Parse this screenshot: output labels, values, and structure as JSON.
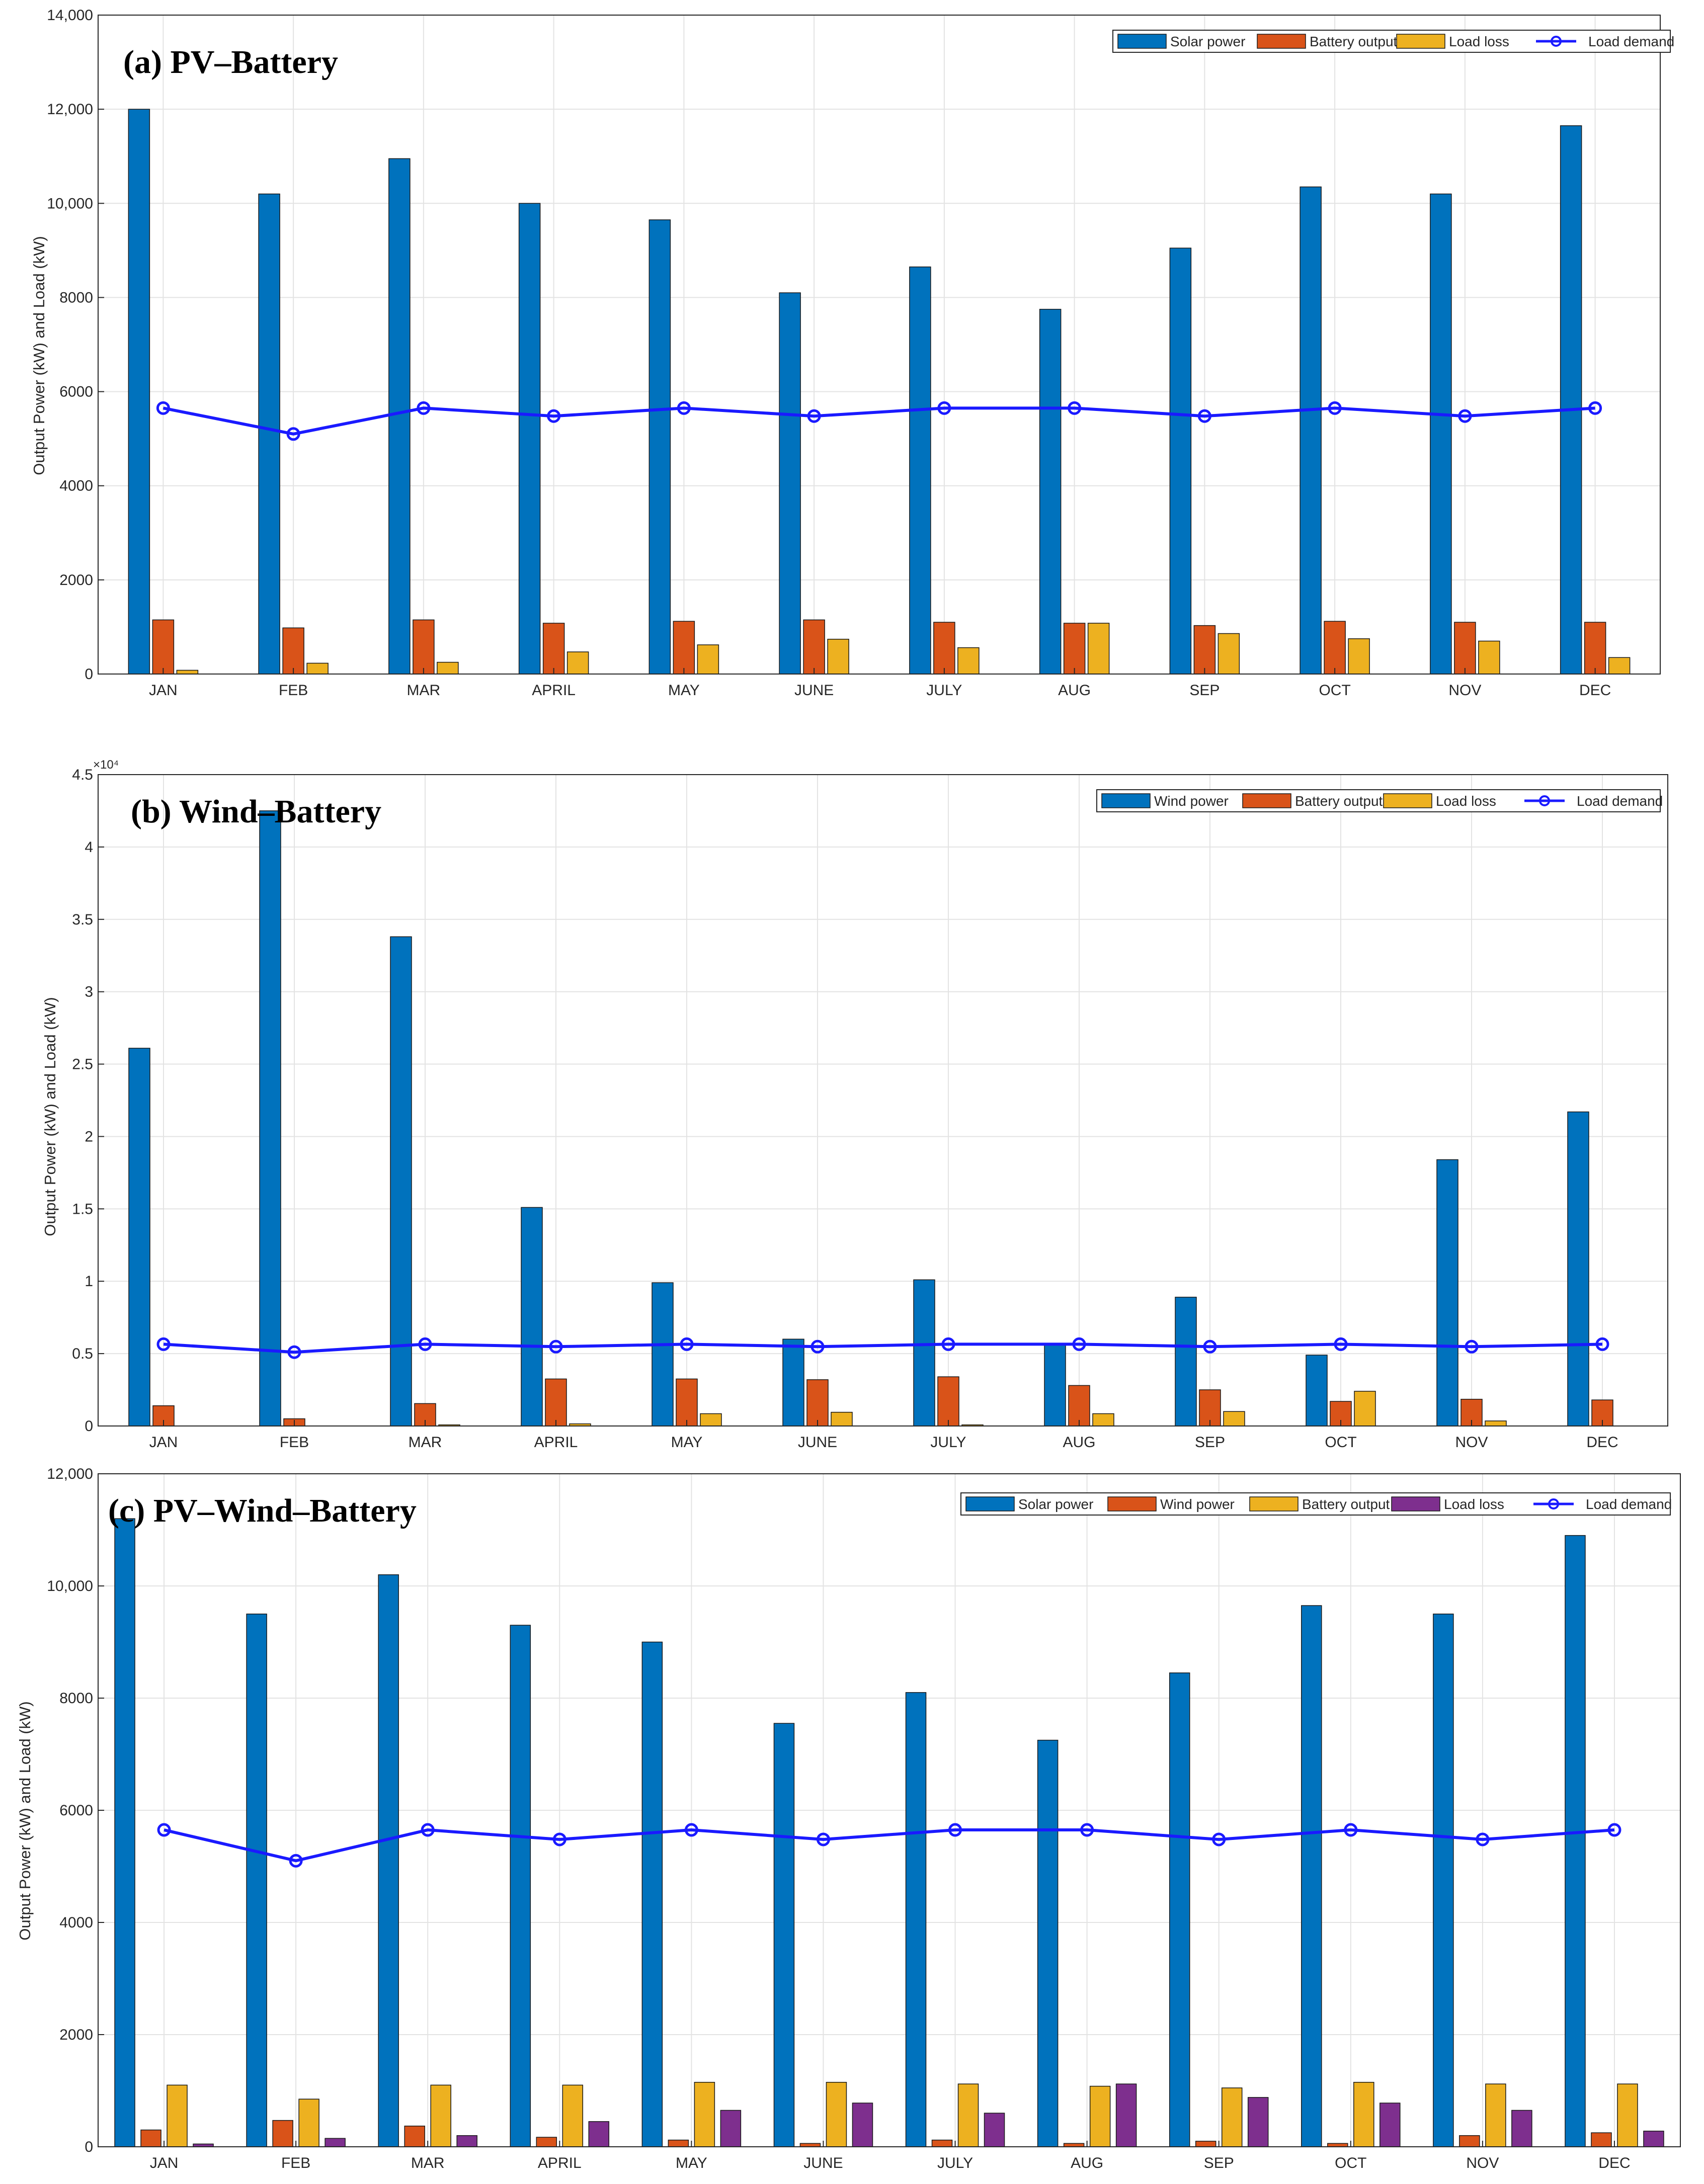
{
  "charts": {
    "a": {
      "title": "(a) PV–Battery",
      "ylabel": "Output Power (kW) and Load (kW)",
      "scale_exponent": "",
      "categories": [
        "JAN",
        "FEB",
        "MAR",
        "APRIL",
        "MAY",
        "JUNE",
        "JULY",
        "AUG",
        "SEP",
        "OCT",
        "NOV",
        "DEC"
      ],
      "yticks": [
        {
          "v": 0,
          "label": "0"
        },
        {
          "v": 2000,
          "label": "2000"
        },
        {
          "v": 4000,
          "label": "4000"
        },
        {
          "v": 6000,
          "label": "6000"
        },
        {
          "v": 8000,
          "label": "8000"
        },
        {
          "v": 10000,
          "label": "10,000"
        },
        {
          "v": 12000,
          "label": "12,000"
        },
        {
          "v": 14000,
          "label": "14,000"
        }
      ],
      "legend": [
        {
          "label": "Solar power",
          "kind": "bar",
          "color": "#0072BD"
        },
        {
          "label": "Battery output",
          "kind": "bar",
          "color": "#D95319"
        },
        {
          "label": "Load loss",
          "kind": "bar",
          "color": "#EDB120"
        },
        {
          "label": "Load demand",
          "kind": "line",
          "color": "#1A1AFF"
        }
      ]
    },
    "b": {
      "title": "(b) Wind–Battery",
      "ylabel": "Output Power (kW) and Load (kW)",
      "scale_exponent": "×10⁴",
      "categories": [
        "JAN",
        "FEB",
        "MAR",
        "APRIL",
        "MAY",
        "JUNE",
        "JULY",
        "AUG",
        "SEP",
        "OCT",
        "NOV",
        "DEC"
      ],
      "yticks": [
        {
          "v": 0,
          "label": "0"
        },
        {
          "v": 5000,
          "label": "0.5"
        },
        {
          "v": 10000,
          "label": "1"
        },
        {
          "v": 15000,
          "label": "1.5"
        },
        {
          "v": 20000,
          "label": "2"
        },
        {
          "v": 25000,
          "label": "2.5"
        },
        {
          "v": 30000,
          "label": "3"
        },
        {
          "v": 35000,
          "label": "3.5"
        },
        {
          "v": 40000,
          "label": "4"
        },
        {
          "v": 45000,
          "label": "4.5"
        }
      ],
      "legend": [
        {
          "label": "Wind power",
          "kind": "bar",
          "color": "#0072BD"
        },
        {
          "label": "Battery output",
          "kind": "bar",
          "color": "#D95319"
        },
        {
          "label": "Load loss",
          "kind": "bar",
          "color": "#EDB120"
        },
        {
          "label": "Load demand",
          "kind": "line",
          "color": "#1A1AFF"
        }
      ]
    },
    "c": {
      "title": "(c) PV–Wind–Battery",
      "ylabel": "Output Power (kW) and Load (kW)",
      "scale_exponent": "",
      "categories": [
        "JAN",
        "FEB",
        "MAR",
        "APRIL",
        "MAY",
        "JUNE",
        "JULY",
        "AUG",
        "SEP",
        "OCT",
        "NOV",
        "DEC"
      ],
      "yticks": [
        {
          "v": 0,
          "label": "0"
        },
        {
          "v": 2000,
          "label": "2000"
        },
        {
          "v": 4000,
          "label": "4000"
        },
        {
          "v": 6000,
          "label": "6000"
        },
        {
          "v": 8000,
          "label": "8000"
        },
        {
          "v": 10000,
          "label": "10,000"
        },
        {
          "v": 12000,
          "label": "12,000"
        }
      ],
      "legend": [
        {
          "label": "Solar power",
          "kind": "bar",
          "color": "#0072BD"
        },
        {
          "label": "Wind power",
          "kind": "bar",
          "color": "#D95319"
        },
        {
          "label": "Battery output",
          "kind": "bar",
          "color": "#EDB120"
        },
        {
          "label": "Load loss",
          "kind": "bar",
          "color": "#7E2F8E"
        },
        {
          "label": "Load demand",
          "kind": "line",
          "color": "#1A1AFF"
        }
      ]
    }
  },
  "chart_data": [
    {
      "type": "bar",
      "title": "(a) PV–Battery",
      "xlabel": "",
      "ylabel": "Output Power (kW) and Load (kW)",
      "ylim": [
        0,
        14000
      ],
      "grid": true,
      "legend_position": "top-right",
      "categories": [
        "JAN",
        "FEB",
        "MAR",
        "APRIL",
        "MAY",
        "JUNE",
        "JULY",
        "AUG",
        "SEP",
        "OCT",
        "NOV",
        "DEC"
      ],
      "series": [
        {
          "name": "Solar power",
          "type": "bar",
          "color": "#0072BD",
          "values": [
            12000,
            10200,
            10950,
            10000,
            9650,
            8100,
            8650,
            7750,
            9050,
            10350,
            10200,
            11650
          ]
        },
        {
          "name": "Battery output",
          "type": "bar",
          "color": "#D95319",
          "values": [
            1150,
            980,
            1150,
            1080,
            1120,
            1150,
            1100,
            1080,
            1030,
            1120,
            1100,
            1100
          ]
        },
        {
          "name": "Load loss",
          "type": "bar",
          "color": "#EDB120",
          "values": [
            80,
            230,
            250,
            470,
            620,
            740,
            560,
            1080,
            860,
            750,
            700,
            350
          ]
        },
        {
          "name": "Load demand",
          "type": "line",
          "color": "#1A1AFF",
          "values": [
            5650,
            5100,
            5650,
            5480,
            5650,
            5480,
            5650,
            5650,
            5480,
            5650,
            5480,
            5650
          ]
        }
      ]
    },
    {
      "type": "bar",
      "title": "(b) Wind–Battery",
      "xlabel": "",
      "ylabel": "Output Power (kW) and Load (kW)",
      "ylim": [
        0,
        45000
      ],
      "grid": true,
      "legend_position": "top-right",
      "categories": [
        "JAN",
        "FEB",
        "MAR",
        "APRIL",
        "MAY",
        "JUNE",
        "JULY",
        "AUG",
        "SEP",
        "OCT",
        "NOV",
        "DEC"
      ],
      "series": [
        {
          "name": "Wind power",
          "type": "bar",
          "color": "#0072BD",
          "values": [
            26100,
            42500,
            33800,
            15100,
            9900,
            6000,
            10100,
            5700,
            8900,
            4900,
            18400,
            21700
          ]
        },
        {
          "name": "Battery output",
          "type": "bar",
          "color": "#D95319",
          "values": [
            1400,
            500,
            1550,
            3250,
            3250,
            3200,
            3400,
            2800,
            2500,
            1700,
            1850,
            1800
          ]
        },
        {
          "name": "Load loss",
          "type": "bar",
          "color": "#EDB120",
          "values": [
            0,
            0,
            80,
            150,
            850,
            950,
            80,
            850,
            1000,
            2400,
            350,
            0
          ]
        },
        {
          "name": "Load demand",
          "type": "line",
          "color": "#1A1AFF",
          "values": [
            5650,
            5100,
            5650,
            5480,
            5650,
            5480,
            5650,
            5650,
            5480,
            5650,
            5480,
            5650
          ]
        }
      ]
    },
    {
      "type": "bar",
      "title": "(c) PV–Wind–Battery",
      "xlabel": "",
      "ylabel": "Output Power (kW) and Load (kW)",
      "ylim": [
        0,
        12000
      ],
      "grid": true,
      "legend_position": "top-right",
      "categories": [
        "JAN",
        "FEB",
        "MAR",
        "APRIL",
        "MAY",
        "JUNE",
        "JULY",
        "AUG",
        "SEP",
        "OCT",
        "NOV",
        "DEC"
      ],
      "series": [
        {
          "name": "Solar power",
          "type": "bar",
          "color": "#0072BD",
          "values": [
            11200,
            9500,
            10200,
            9300,
            9000,
            7550,
            8100,
            7250,
            8450,
            9650,
            9500,
            10900
          ]
        },
        {
          "name": "Wind power",
          "type": "bar",
          "color": "#D95319",
          "values": [
            300,
            470,
            370,
            170,
            120,
            60,
            120,
            60,
            100,
            60,
            200,
            250
          ]
        },
        {
          "name": "Battery output",
          "type": "bar",
          "color": "#EDB120",
          "values": [
            1100,
            850,
            1100,
            1100,
            1150,
            1150,
            1120,
            1080,
            1050,
            1150,
            1120,
            1120
          ]
        },
        {
          "name": "Load loss",
          "type": "bar",
          "color": "#7E2F8E",
          "values": [
            50,
            150,
            200,
            450,
            650,
            780,
            600,
            1120,
            880,
            780,
            650,
            280
          ]
        },
        {
          "name": "Load demand",
          "type": "line",
          "color": "#1A1AFF",
          "values": [
            5650,
            5100,
            5650,
            5480,
            5650,
            5480,
            5650,
            5650,
            5480,
            5650,
            5480,
            5650
          ]
        }
      ]
    }
  ]
}
